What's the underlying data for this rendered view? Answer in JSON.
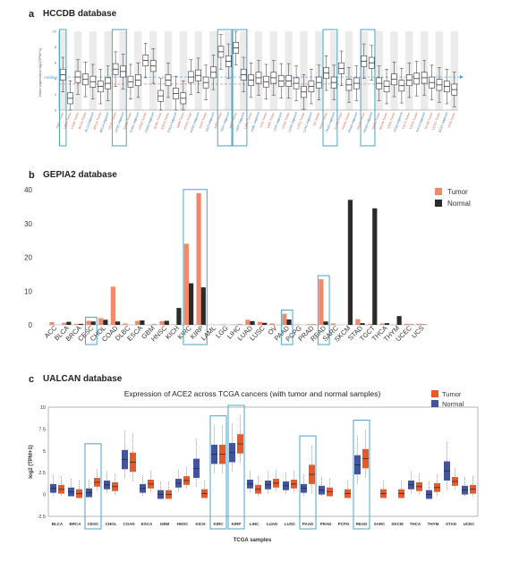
{
  "panel_a": {
    "letter": "a",
    "title": "HCCDB database",
    "ylabel": "Gene expression log2(TPM+1)",
    "median_label": "median",
    "chart_data": {
      "type": "box",
      "categories": [
        "KIRC-Tumor",
        "LAML-Tumor",
        "LUAD-Tumor",
        "BLCA-Tumor",
        "BLCA-Adjacent",
        "BRCA-Tumor",
        "BRCA-Adjacent",
        "CESC-Tumor",
        "CESC-Adjacent",
        "CHOL-Tumor",
        "CHOL-Adjacent",
        "COAD-Tumor",
        "COAD-Adjacent",
        "DLBC-Tumor",
        "ESCA-Tumor",
        "ESCA-Adjacent",
        "GBM-Tumor",
        "HNSC-Tumor",
        "HNSC-Adjacent",
        "KICH-Tumor",
        "KICH-Adjacent",
        "KIRC-Tumor",
        "KIRC-Adjacent",
        "KIRP-Tumor",
        "KIRP-Adjacent",
        "LAML-Tumor",
        "LAML-Adjacent",
        "LGG-Tumor",
        "LIHC-Tumor",
        "LIHC-Adjacent",
        "LUAD-Tumor",
        "LUAD-Adjacent",
        "LUSC-Tumor",
        "LUSC-Adjacent",
        "OV-Tumor",
        "PAAD-Tumor",
        "PAAD-Adjacent",
        "PCPG-Tumor",
        "PRAD-Tumor",
        "PRAD-Adjacent",
        "READ-Tumor",
        "READ-Adjacent",
        "SARC-Tumor",
        "SKCM-Tumor",
        "STAD-Tumor",
        "STAD-Adjacent",
        "TGCT-Tumor",
        "THCA-Tumor",
        "THCA-Adjacent",
        "THYM-Tumor",
        "UCEC-Tumor",
        "UCEC-Adjacent",
        "UCS-Tumor"
      ],
      "medians": [
        4.5,
        1.5,
        4.2,
        3.9,
        3.6,
        3.0,
        3.4,
        5.2,
        4.9,
        3.6,
        3.8,
        6.3,
        5.6,
        1.8,
        3.8,
        2.1,
        1.5,
        4.2,
        4.4,
        3.5,
        4.8,
        7.4,
        6.2,
        7.9,
        4.5,
        3.8,
        4.1,
        3.6,
        4.1,
        3.7,
        3.7,
        3.4,
        2.3,
        3.0,
        3.5,
        4.7,
        3.5,
        5.3,
        3.2,
        3.4,
        6.2,
        6.0,
        3.4,
        3.0,
        3.9,
        3.1,
        3.8,
        4.0,
        4.1,
        3.5,
        3.2,
        3.0,
        2.6
      ],
      "ylim": [
        0,
        10
      ],
      "median_line": 4.2,
      "highlighted": [
        "CESC-Tumor",
        "CESC-Adjacent",
        "KIRC-Tumor",
        "KIRC-Adjacent",
        "KIRP-Tumor",
        "KIRP-Adjacent",
        "PAAD-Tumor",
        "PAAD-Adjacent",
        "READ-Tumor",
        "READ-Adjacent"
      ]
    }
  },
  "panel_b": {
    "letter": "b",
    "title": "GEPIA2 database",
    "legend": {
      "tumor": "Tumor",
      "normal": "Normal"
    },
    "chart_data": {
      "type": "bar",
      "categories": [
        "ACC",
        "BLCA",
        "BRCA",
        "CESC",
        "CHOL",
        "COAD",
        "DLBC",
        "ESCA",
        "GBM",
        "HNSC",
        "KICH",
        "KIRC",
        "KIRP",
        "LAML",
        "LGG",
        "LIHC",
        "LUAD",
        "LUSC",
        "OV",
        "PAAD",
        "PCPG",
        "PRAD",
        "READ",
        "SARC",
        "SKCM",
        "STAD",
        "TGCT",
        "THCA",
        "THYM",
        "UCEC",
        "UCS"
      ],
      "series": [
        {
          "name": "Tumor",
          "values": [
            0.8,
            0.6,
            0.3,
            1.2,
            2.0,
            11.3,
            0.4,
            1.2,
            0.1,
            1.1,
            0.1,
            24.0,
            39.0,
            0.0,
            0.1,
            0.1,
            1.5,
            0.9,
            0.4,
            3.3,
            0.1,
            0.2,
            13.5,
            0.4,
            0.0,
            1.7,
            0.3,
            0.4,
            0.1,
            0.3,
            0.3
          ]
        },
        {
          "name": "Normal",
          "values": [
            0.0,
            0.9,
            0.3,
            1.0,
            1.5,
            1.0,
            0.0,
            1.3,
            0.1,
            1.2,
            5.0,
            12.3,
            11.1,
            0.0,
            0.0,
            0.1,
            1.1,
            0.6,
            0.0,
            1.6,
            0.0,
            0.1,
            1.0,
            0.0,
            37.0,
            0.5,
            34.5,
            0.5,
            2.6,
            0.1,
            0.1
          ]
        }
      ],
      "ylim": [
        0,
        40
      ],
      "yticks": [
        0,
        10,
        20,
        30,
        40
      ],
      "highlighted": [
        "CESC",
        "KIRC",
        "KIRP",
        "PAAD",
        "READ"
      ],
      "colors": {
        "tumor": "#f08a6c",
        "normal": "#2b2b2b"
      }
    }
  },
  "panel_c": {
    "letter": "c",
    "title": "UALCAN database",
    "chart_title": "Expression of ACE2 across TCGA cancers (with tumor and normal samples)",
    "xlabel": "TCGA samples",
    "ylabel": "log2 (TPM+1)",
    "legend": {
      "tumor": "Tumor",
      "normal": "Normal"
    },
    "chart_data": {
      "type": "box",
      "categories": [
        "BLCA",
        "BRCA",
        "CESC",
        "CHOL",
        "COAD",
        "ESCA",
        "GBM",
        "HNSC",
        "KICH",
        "KIRC",
        "KIRP",
        "LIHC",
        "LUAD",
        "LUSC",
        "PAAD",
        "PRAD",
        "PCPG",
        "READ",
        "SARC",
        "SKCM",
        "THCA",
        "THYM",
        "STAD",
        "UCEC"
      ],
      "tumor_medians": [
        0.6,
        0.1,
        1.4,
        0.9,
        3.7,
        1.2,
        0.0,
        1.6,
        0.1,
        4.6,
        5.8,
        0.6,
        1.3,
        1.2,
        2.3,
        0.3,
        0.1,
        4.1,
        0.1,
        0.1,
        0.9,
        0.8,
        1.5,
        0.6
      ],
      "normal_medians": [
        0.7,
        0.3,
        0.2,
        1.1,
        4.0,
        0.7,
        0.0,
        1.3,
        3.0,
        4.6,
        4.8,
        1.2,
        1.1,
        1.0,
        0.7,
        0.5,
        null,
        3.4,
        null,
        null,
        1.1,
        0.0,
        2.7,
        0.5
      ],
      "ylim": [
        -2.5,
        10
      ],
      "yticks": [
        -2.5,
        0,
        2.5,
        5,
        7.5,
        10
      ],
      "highlighted": [
        "CESC",
        "KIRC",
        "KIRP",
        "PAAD",
        "READ"
      ],
      "colors": {
        "tumor": "#e8592a",
        "normal": "#44549c"
      }
    }
  }
}
